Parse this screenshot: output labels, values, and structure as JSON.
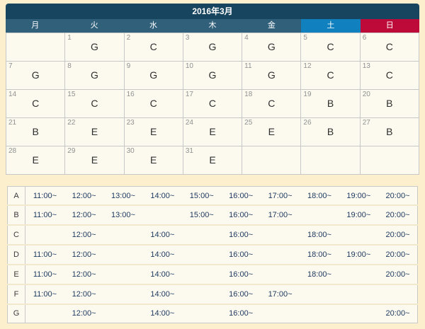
{
  "calendar": {
    "title": "2016年3月",
    "weekdays": [
      {
        "label": "月",
        "name": "monday",
        "type": "weekday"
      },
      {
        "label": "火",
        "name": "tuesday",
        "type": "weekday"
      },
      {
        "label": "水",
        "name": "wednesday",
        "type": "weekday"
      },
      {
        "label": "木",
        "name": "thursday",
        "type": "weekday"
      },
      {
        "label": "金",
        "name": "friday",
        "type": "weekday"
      },
      {
        "label": "土",
        "name": "saturday",
        "type": "saturday"
      },
      {
        "label": "日",
        "name": "sunday",
        "type": "sunday"
      }
    ],
    "weeks": [
      [
        null,
        {
          "day": 1,
          "code": "G"
        },
        {
          "day": 2,
          "code": "C"
        },
        {
          "day": 3,
          "code": "G"
        },
        {
          "day": 4,
          "code": "G"
        },
        {
          "day": 5,
          "code": "C"
        },
        {
          "day": 6,
          "code": "C"
        }
      ],
      [
        {
          "day": 7,
          "code": "G"
        },
        {
          "day": 8,
          "code": "G"
        },
        {
          "day": 9,
          "code": "G"
        },
        {
          "day": 10,
          "code": "G"
        },
        {
          "day": 11,
          "code": "G"
        },
        {
          "day": 12,
          "code": "C"
        },
        {
          "day": 13,
          "code": "C"
        }
      ],
      [
        {
          "day": 14,
          "code": "C"
        },
        {
          "day": 15,
          "code": "C"
        },
        {
          "day": 16,
          "code": "C"
        },
        {
          "day": 17,
          "code": "C"
        },
        {
          "day": 18,
          "code": "C"
        },
        {
          "day": 19,
          "code": "B"
        },
        {
          "day": 20,
          "code": "B"
        }
      ],
      [
        {
          "day": 21,
          "code": "B"
        },
        {
          "day": 22,
          "code": "E"
        },
        {
          "day": 23,
          "code": "E"
        },
        {
          "day": 24,
          "code": "E"
        },
        {
          "day": 25,
          "code": "E"
        },
        {
          "day": 26,
          "code": "B"
        },
        {
          "day": 27,
          "code": "B"
        }
      ],
      [
        {
          "day": 28,
          "code": "E"
        },
        {
          "day": 29,
          "code": "E"
        },
        {
          "day": 30,
          "code": "E"
        },
        {
          "day": 31,
          "code": "E"
        },
        null,
        null,
        null
      ]
    ]
  },
  "schedule": {
    "rows": [
      {
        "label": "A",
        "slots": [
          "11:00~",
          "12:00~",
          "13:00~",
          "14:00~",
          "15:00~",
          "16:00~",
          "17:00~",
          "18:00~",
          "19:00~",
          "20:00~"
        ]
      },
      {
        "label": "B",
        "slots": [
          "11:00~",
          "12:00~",
          "13:00~",
          "",
          "15:00~",
          "16:00~",
          "17:00~",
          "",
          "19:00~",
          "20:00~"
        ]
      },
      {
        "label": "C",
        "slots": [
          "",
          "12:00~",
          "",
          "14:00~",
          "",
          "16:00~",
          "",
          "18:00~",
          "",
          "20:00~"
        ]
      },
      {
        "label": "D",
        "slots": [
          "11:00~",
          "12:00~",
          "",
          "14:00~",
          "",
          "16:00~",
          "",
          "18:00~",
          "19:00~",
          "20:00~"
        ]
      },
      {
        "label": "E",
        "slots": [
          "11:00~",
          "12:00~",
          "",
          "14:00~",
          "",
          "16:00~",
          "",
          "18:00~",
          "",
          "20:00~"
        ]
      },
      {
        "label": "F",
        "slots": [
          "11:00~",
          "12:00~",
          "",
          "14:00~",
          "",
          "16:00~",
          "17:00~",
          "",
          "",
          ""
        ]
      },
      {
        "label": "G",
        "slots": [
          "",
          "12:00~",
          "",
          "14:00~",
          "",
          "16:00~",
          "",
          "",
          "",
          "20:00~"
        ]
      }
    ]
  },
  "colors": {
    "page_bg": "#FBEFCD",
    "cell_bg": "#FCFAEF",
    "title_bar": "#174560",
    "weekday_bar": "#31607A",
    "saturday": "#1080BF",
    "sunday": "#BE0A38",
    "time_text": "#1F3A60"
  }
}
